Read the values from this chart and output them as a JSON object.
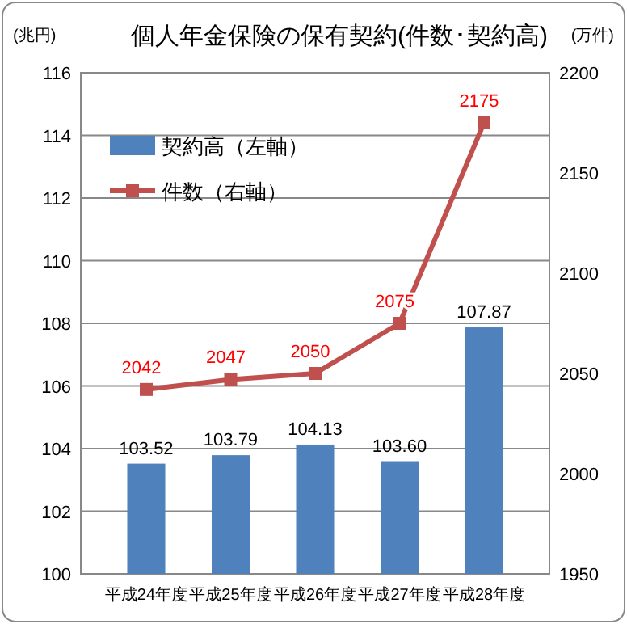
{
  "chart_data": {
    "type": "bar",
    "title": "個人年金保険の保有契約(件数･契約高)",
    "ylabel": "(兆円)",
    "y2label": "(万件)",
    "categories": [
      "平成24年度",
      "平成25年度",
      "平成26年度",
      "平成27年度",
      "平成28年度"
    ],
    "series": [
      {
        "name": "契約高（左軸）",
        "color": "#4f81bd",
        "values": [
          103.52,
          103.79,
          104.13,
          103.6,
          107.87
        ],
        "value_labels": [
          "103.52",
          "103.79",
          "104.13",
          "103.60",
          "107.87"
        ]
      },
      {
        "name": "件数（右軸）",
        "type": "line",
        "axis": "y2",
        "color": "#c0504d",
        "marker": "square",
        "values": [
          2042,
          2047,
          2050,
          2075,
          2175
        ],
        "value_labels": [
          "2042",
          "2047",
          "2050",
          "2075",
          "2175"
        ]
      }
    ],
    "ylim": [
      100,
      116
    ],
    "yticks": [
      100,
      102,
      104,
      106,
      108,
      110,
      112,
      114,
      116
    ],
    "y2lim": [
      1950,
      2200
    ],
    "y2ticks": [
      1950,
      2000,
      2050,
      2100,
      2150,
      2200
    ],
    "grid": "y",
    "legend": "top left"
  }
}
